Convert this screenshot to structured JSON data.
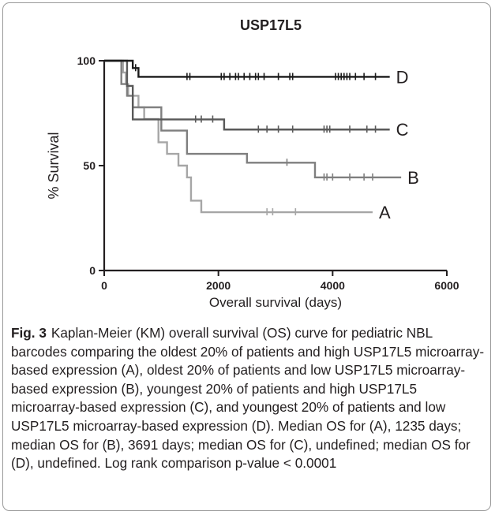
{
  "figure": {
    "label": "Fig. 3",
    "caption": "Kaplan-Meier (KM) overall survival (OS) curve for pediatric NBL barcodes comparing the oldest 20% of patients and high USP17L5 microarray-based expression (A), oldest 20% of patients and low USP17L5 microarray-based expression (B), youngest 20% of patients and high USP17L5 microarray-based expression (C), and youngest 20% of patients and low USP17L5 microarray-based expression (D). Median OS for (A), 1235 days; median OS for (B), 3691 days; median OS for (C), undefined; median OS for (D), undefined. Log rank comparison p-value < 0.0001"
  },
  "chart_data": {
    "type": "line",
    "subtype": "kaplan-meier-step",
    "title": "USP17L5",
    "xlabel": "Overall survival (days)",
    "ylabel": "% Survival",
    "xlim": [
      0,
      6000
    ],
    "ylim": [
      0,
      100
    ],
    "xticks": [
      "0",
      "2000",
      "4000",
      "6000"
    ],
    "yticks": [
      "0",
      "50",
      "100"
    ],
    "grid": false,
    "legend": "none (curves labeled at right end)",
    "series": [
      {
        "name": "A",
        "color": "#a6a6a6",
        "x": [
          0,
          330,
          380,
          420,
          600,
          700,
          950,
          1100,
          1300,
          1450,
          1520,
          1700,
          4700
        ],
        "y": [
          100,
          94.4,
          88.9,
          83.3,
          77.8,
          72.2,
          61.1,
          55.6,
          50,
          44.4,
          33.3,
          27.8,
          27.8
        ],
        "censor_x": [
          2850,
          2950,
          3350
        ]
      },
      {
        "name": "B",
        "color": "#7f7f7f",
        "x": [
          0,
          300,
          400,
          500,
          1000,
          1450,
          2500,
          3691,
          5200
        ],
        "y": [
          100,
          88.9,
          83.3,
          77.8,
          66.7,
          55.6,
          51.4,
          44.4,
          44.4
        ],
        "censor_x": [
          3200,
          3850,
          3900,
          4000,
          4300,
          4550,
          4700
        ]
      },
      {
        "name": "C",
        "color": "#595959",
        "x": [
          0,
          400,
          500,
          2100,
          5000
        ],
        "y": [
          100,
          88,
          72,
          67.2,
          67.2
        ],
        "censor_x": [
          1600,
          1700,
          1900,
          2700,
          2850,
          3050,
          3300,
          3850,
          3900,
          3950,
          4300,
          4600,
          4750
        ]
      },
      {
        "name": "D",
        "color": "#1a1a1a",
        "x": [
          0,
          500,
          600,
          5000
        ],
        "y": [
          100,
          96.5,
          92.3,
          92.3
        ],
        "censor_x": [
          550,
          1450,
          1500,
          2050,
          2100,
          2200,
          2300,
          2350,
          2450,
          2550,
          2650,
          2700,
          2800,
          3050,
          3250,
          3300,
          4050,
          4100,
          4150,
          4200,
          4250,
          4300,
          4400,
          4550,
          4750
        ]
      }
    ]
  }
}
